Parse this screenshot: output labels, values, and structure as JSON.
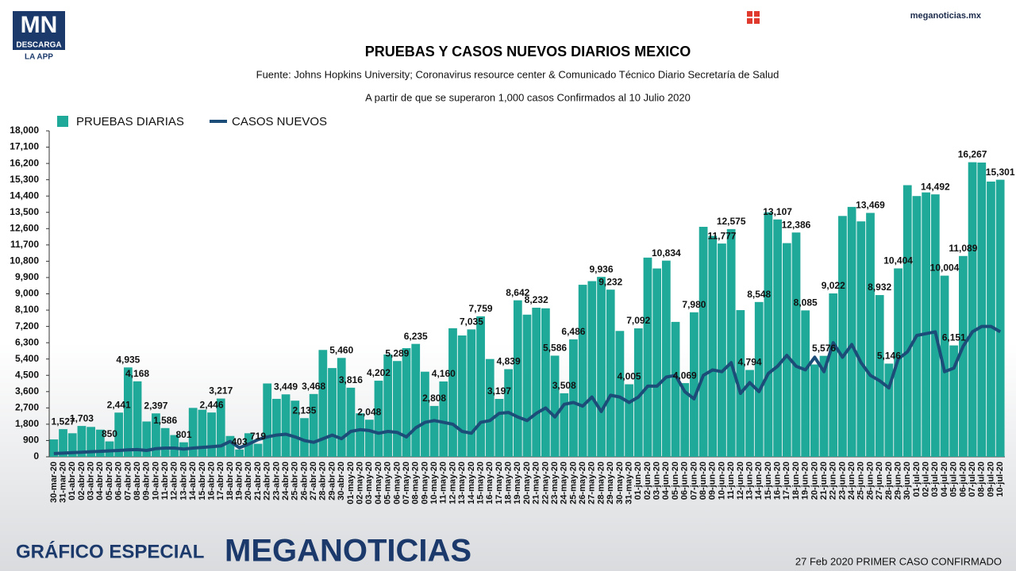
{
  "header": {
    "logo": "MN",
    "logo_sub": "DESCARGA",
    "logo_app": "LA APP",
    "site": "meganoticias.mx"
  },
  "footer": {
    "left": "GRÁFICO ESPECIAL",
    "brand": "MEGANOTICIAS",
    "right": "27 Feb 2020 PRIMER CASO CONFIRMADO"
  },
  "chart_data": {
    "type": "bar-line",
    "title": "PRUEBAS Y CASOS NUEVOS DIARIOS MEXICO",
    "subtitle": "Fuente: Johns Hopkins University; Coronavirus resource center & Comunicado Técnico Diario Secretaría de Salud",
    "subtitle2": "A partir de que se superaron 1,000 casos Confirmados al 10 Julio 2020",
    "categories": [
      "30-mar-20",
      "31-mar-20",
      "01-abr-20",
      "02-abr-20",
      "03-abr-20",
      "04-abr-20",
      "05-abr-20",
      "06-abr-20",
      "07-abr-20",
      "08-abr-20",
      "09-abr-20",
      "10-abr-20",
      "11-abr-20",
      "12-abr-20",
      "13-abr-20",
      "14-abr-20",
      "15-abr-20",
      "16-abr-20",
      "17-abr-20",
      "18-abr-20",
      "19-abr-20",
      "20-abr-20",
      "21-abr-20",
      "22-abr-20",
      "23-abr-20",
      "24-abr-20",
      "25-abr-20",
      "26-abr-20",
      "27-abr-20",
      "28-abr-20",
      "29-abr-20",
      "30-abr-20",
      "01-may-20",
      "02-may-20",
      "03-may-20",
      "04-may-20",
      "05-may-20",
      "06-may-20",
      "07-may-20",
      "08-may-20",
      "09-may-20",
      "10-may-20",
      "11-may-20",
      "12-may-20",
      "13-may-20",
      "14-may-20",
      "15-may-20",
      "16-may-20",
      "17-may-20",
      "18-may-20",
      "19-may-20",
      "20-may-20",
      "21-may-20",
      "22-may-20",
      "23-may-20",
      "24-may-20",
      "25-may-20",
      "26-may-20",
      "27-may-20",
      "28-may-20",
      "29-may-20",
      "30-may-20",
      "31-may-20",
      "01-jun-20",
      "02-jun-20",
      "03-jun-20",
      "04-jun-20",
      "05-jun-20",
      "06-jun-20",
      "07-jun-20",
      "08-jun-20",
      "09-jun-20",
      "10-jun-20",
      "11-jun-20",
      "12-jun-20",
      "13-jun-20",
      "14-jun-20",
      "15-jun-20",
      "16-jun-20",
      "17-jun-20",
      "18-jun-20",
      "19-jun-20",
      "20-jun-20",
      "21-jun-20",
      "22-jun-20",
      "23-jun-20",
      "24-jun-20",
      "25-jun-20",
      "26-jun-20",
      "27-jun-20",
      "28-jun-20",
      "29-jun-20",
      "30-jun-20",
      "01-jul-20",
      "02-jul-20",
      "03-jul-20",
      "04-jul-20",
      "05-jul-20",
      "06-jul-20",
      "07-jul-20",
      "08-jul-20",
      "09-jul-20",
      "10-jul-20"
    ],
    "series": [
      {
        "name": "PRUEBAS DIARIAS",
        "kind": "bar",
        "color": "#1fa999",
        "values": [
          960,
          1527,
          1300,
          1703,
          1650,
          1500,
          850,
          2441,
          4935,
          4168,
          1950,
          2397,
          1586,
          1200,
          801,
          2700,
          2600,
          2446,
          3217,
          1150,
          403,
          1300,
          719,
          4050,
          3200,
          3449,
          3100,
          2135,
          3468,
          5900,
          4900,
          5460,
          3816,
          2400,
          2048,
          4202,
          5650,
          5289,
          6000,
          6235,
          4700,
          2808,
          4160,
          7100,
          6700,
          7035,
          7759,
          5400,
          3197,
          4839,
          8642,
          7850,
          8232,
          8200,
          5586,
          3508,
          6486,
          9500,
          9700,
          9936,
          9232,
          6950,
          4005,
          7092,
          11000,
          10400,
          10834,
          7450,
          4069,
          7980,
          12700,
          12200,
          11777,
          12575,
          8100,
          4794,
          8548,
          13500,
          13107,
          11800,
          12386,
          8085,
          5100,
          5576,
          9022,
          13300,
          13800,
          13000,
          13469,
          8932,
          5146,
          10404,
          15000,
          14400,
          14600,
          14492,
          10004,
          6151,
          11089,
          16267,
          16250,
          15200,
          15301
        ],
        "value_labels": [
          null,
          "1,527",
          null,
          "1,703",
          null,
          null,
          "850",
          "2,441",
          "4,935",
          "4,168",
          null,
          "2,397",
          "1,586",
          null,
          "801",
          null,
          null,
          "2,446",
          "3,217",
          null,
          "403",
          null,
          "719",
          null,
          null,
          "3,449",
          null,
          "2,135",
          "3,468",
          null,
          null,
          "5,460",
          "3,816",
          null,
          "2,048",
          "4,202",
          null,
          "5,289",
          null,
          "6,235",
          null,
          "2,808",
          "4,160",
          null,
          null,
          "7,035",
          "7,759",
          null,
          "3,197",
          "4,839",
          "8,642",
          null,
          "8,232",
          null,
          "5,586",
          "3,508",
          "6,486",
          null,
          null,
          "9,936",
          "9,232",
          null,
          "4,005",
          "7,092",
          null,
          null,
          "10,834",
          null,
          "4,069",
          "7,980",
          null,
          null,
          "11,777",
          "12,575",
          null,
          "4,794",
          "8,548",
          null,
          "13,107",
          null,
          "12,386",
          "8,085",
          null,
          "5,576",
          "9,022",
          null,
          null,
          null,
          "13,469",
          "8,932",
          "5,146",
          "10,404",
          null,
          null,
          null,
          "14,492",
          "10,004",
          "6,151",
          "11,089",
          "16,267",
          null,
          null,
          "15,301"
        ]
      },
      {
        "name": "CASOS NUEVOS",
        "kind": "line",
        "color": "#1b4d78",
        "values": [
          180,
          200,
          230,
          250,
          280,
          300,
          330,
          350,
          380,
          400,
          350,
          450,
          480,
          480,
          430,
          480,
          520,
          560,
          600,
          850,
          500,
          700,
          950,
          1100,
          1200,
          1250,
          1100,
          900,
          800,
          1000,
          1200,
          1000,
          1400,
          1500,
          1450,
          1300,
          1400,
          1350,
          1100,
          1600,
          1900,
          2000,
          1900,
          1800,
          1400,
          1300,
          1900,
          2000,
          2400,
          2450,
          2200,
          2000,
          2400,
          2700,
          2200,
          2900,
          3000,
          2800,
          3300,
          2500,
          3400,
          3300,
          3000,
          3300,
          3900,
          3900,
          4400,
          4500,
          3600,
          3200,
          4500,
          4800,
          4700,
          5200,
          3500,
          4100,
          3600,
          4600,
          5000,
          5600,
          5000,
          4800,
          5500,
          4700,
          6300,
          5500,
          6200,
          5200,
          4500,
          4200,
          3800,
          5400,
          5800,
          6700,
          6800,
          6900,
          4700,
          4900,
          6100,
          6900,
          7200,
          7200,
          6900
        ]
      }
    ],
    "ylim": [
      0,
      18000
    ],
    "yticks": [
      0,
      900,
      {
        "value": 1800,
        "label": "1,800"
      },
      {
        "value": 2700,
        "label": "2,700"
      },
      {
        "value": 3600,
        "label": "3,600"
      },
      {
        "value": 4500,
        "label": "4,500"
      },
      {
        "value": 5400,
        "label": "5,400"
      },
      {
        "value": 6300,
        "label": "6,300"
      },
      {
        "value": 7200,
        "label": "7,200"
      },
      {
        "value": 8100,
        "label": "8,100"
      },
      {
        "value": 9000,
        "label": "9,000"
      },
      {
        "value": 9900,
        "label": "9,900"
      },
      {
        "value": 10800,
        "label": "10,800"
      },
      {
        "value": 11700,
        "label": "11,700"
      },
      {
        "value": 12600,
        "label": "12,600"
      },
      {
        "value": 13500,
        "label": "13,500"
      },
      {
        "value": 14400,
        "label": "14,400"
      },
      {
        "value": 15300,
        "label": "15,300"
      },
      {
        "value": 16200,
        "label": "16,200"
      },
      {
        "value": 17100,
        "label": "17,100"
      },
      {
        "value": 18000,
        "label": "18,000"
      }
    ]
  }
}
